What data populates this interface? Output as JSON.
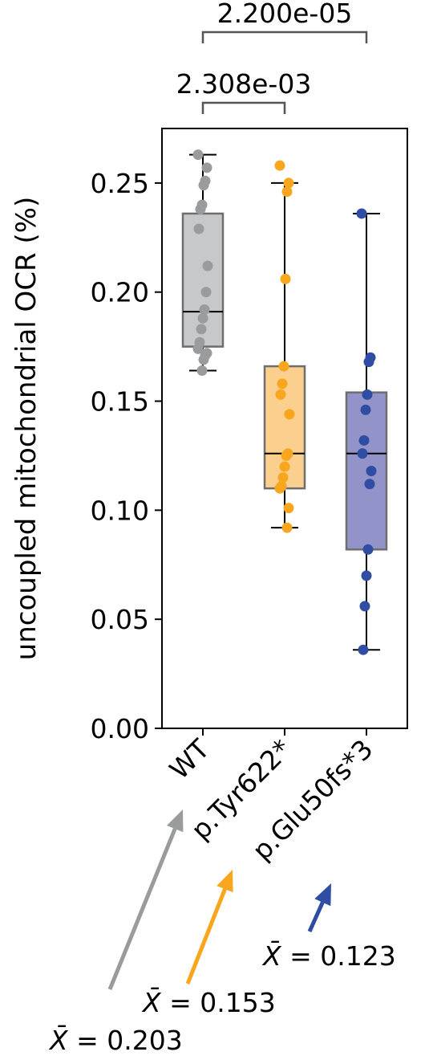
{
  "chart_data": {
    "type": "box",
    "ylabel": "uncoupled mitochondrial OCR (%)",
    "ylim": [
      0.0,
      0.275
    ],
    "yticks": [
      0.0,
      0.05,
      0.1,
      0.15,
      0.2,
      0.25
    ],
    "ytick_labels": [
      "0.00",
      "0.05",
      "0.10",
      "0.15",
      "0.20",
      "0.25"
    ],
    "categories": [
      "WT",
      "p.Tyr622*",
      "p.Glu50fs*3"
    ],
    "series": [
      {
        "category": "WT",
        "color": "#9a9b9d",
        "box_fill": "#c7c8ca",
        "box": {
          "whisker_low": 0.164,
          "q1": 0.175,
          "median": 0.191,
          "q3": 0.236,
          "whisker_high": 0.263
        },
        "points": [
          0.263,
          0.257,
          0.251,
          0.249,
          0.24,
          0.238,
          0.229,
          0.212,
          0.2,
          0.192,
          0.188,
          0.183,
          0.177,
          0.174,
          0.172,
          0.171,
          0.169,
          0.164
        ],
        "mean": 0.203
      },
      {
        "category": "p.Tyr622*",
        "color": "#f8a61d",
        "box_fill": "#fbcf8e",
        "box": {
          "whisker_low": 0.092,
          "q1": 0.11,
          "median": 0.126,
          "q3": 0.166,
          "whisker_high": 0.25
        },
        "points": [
          0.258,
          0.25,
          0.246,
          0.206,
          0.166,
          0.158,
          0.153,
          0.144,
          0.126,
          0.125,
          0.12,
          0.115,
          0.111,
          0.11,
          0.101,
          0.092
        ],
        "mean": 0.153
      },
      {
        "category": "p.Glu50fs*3",
        "color": "#2f4da3",
        "box_fill": "#9294c9",
        "box": {
          "whisker_low": 0.036,
          "q1": 0.082,
          "median": 0.126,
          "q3": 0.154,
          "whisker_high": 0.236
        },
        "points": [
          0.236,
          0.17,
          0.168,
          0.153,
          0.146,
          0.132,
          0.126,
          0.118,
          0.112,
          0.082,
          0.07,
          0.056,
          0.036
        ],
        "mean": 0.123
      }
    ],
    "comparisons": [
      {
        "groups": [
          "WT",
          "p.Tyr622*"
        ],
        "label": "2.308e-03"
      },
      {
        "groups": [
          "WT",
          "p.Glu50fs*3"
        ],
        "label": "2.200e-05"
      }
    ],
    "annotations": [
      {
        "category": "WT",
        "prefix": "X̄",
        "text": " = 0.203"
      },
      {
        "category": "p.Tyr622*",
        "prefix": "X̄",
        "text": " = 0.153"
      },
      {
        "category": "p.Glu50fs*3",
        "prefix": "X̄",
        "text": " = 0.123"
      }
    ]
  }
}
